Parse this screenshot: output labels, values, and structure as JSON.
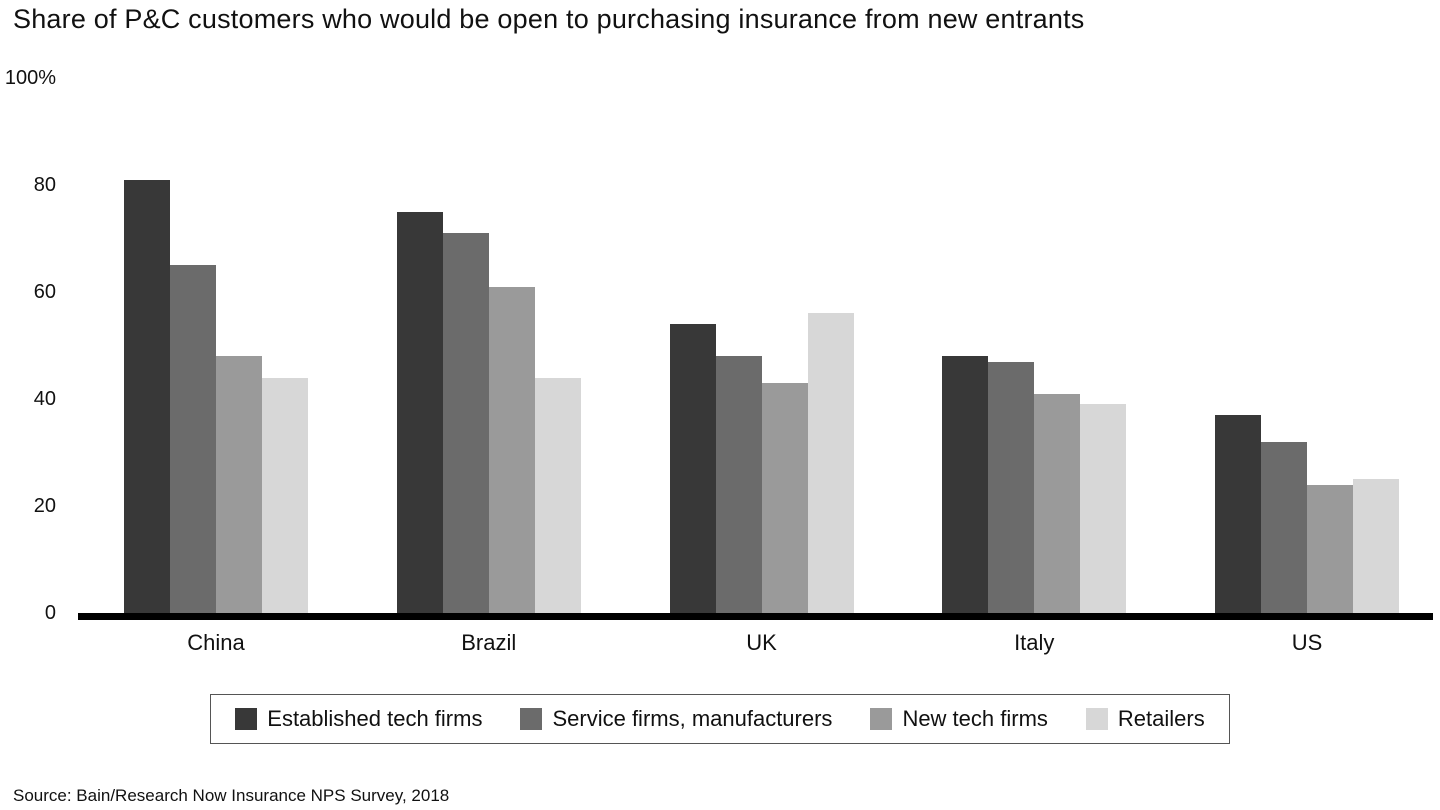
{
  "title": "Share of P&C customers who would be open to purchasing insurance from new entrants",
  "source": "Source: Bain/Research Now Insurance NPS Survey, 2018",
  "chart_data": {
    "type": "bar",
    "title": "Share of P&C customers who would be open to purchasing insurance from new entrants",
    "categories": [
      "China",
      "Brazil",
      "UK",
      "Italy",
      "US"
    ],
    "series": [
      {
        "name": "Established tech firms",
        "color": "#383838",
        "values": [
          81,
          75,
          54,
          48,
          37
        ]
      },
      {
        "name": "Service firms, manufacturers",
        "color": "#6b6b6b",
        "values": [
          65,
          71,
          48,
          47,
          32
        ]
      },
      {
        "name": "New tech firms",
        "color": "#9a9a9a",
        "values": [
          48,
          61,
          43,
          41,
          24
        ]
      },
      {
        "name": "Retailers",
        "color": "#d7d7d7",
        "values": [
          44,
          44,
          56,
          39,
          25
        ]
      }
    ],
    "values_note": "percent of customers",
    "ylim": [
      0,
      100
    ],
    "yticks": [
      {
        "value": 0,
        "label": "0"
      },
      {
        "value": 20,
        "label": "20"
      },
      {
        "value": 40,
        "label": "40"
      },
      {
        "value": 60,
        "label": "60"
      },
      {
        "value": 80,
        "label": "80"
      },
      {
        "value": 100,
        "label": "100%"
      }
    ],
    "grid": false,
    "legend_position": "bottom"
  }
}
